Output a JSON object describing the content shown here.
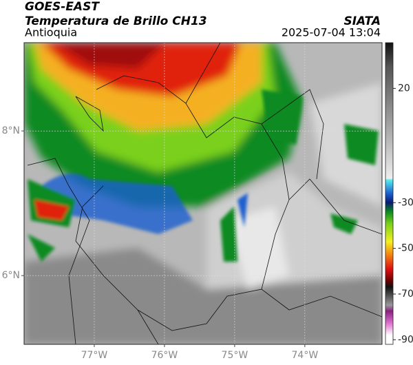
{
  "header": {
    "source": "GOES-EAST",
    "title": "Temperatura de Brillo CH13",
    "brand": "SIATA",
    "region": "Antioquia",
    "datetime": "2025-07-04 13:04"
  },
  "map": {
    "xlim": [
      -78,
      -72.9
    ],
    "ylim": [
      5.05,
      9.22
    ],
    "xticks": [
      {
        "value": -77,
        "label": "77°W"
      },
      {
        "value": -76,
        "label": "76°W"
      },
      {
        "value": -75,
        "label": "75°W"
      },
      {
        "value": -74,
        "label": "74°W"
      }
    ],
    "yticks": [
      {
        "value": 6,
        "label": "6°N"
      },
      {
        "value": 8,
        "label": "8°N"
      }
    ],
    "grid": true
  },
  "colorbar": {
    "lim": [
      -92,
      40
    ],
    "ticks": [
      20,
      -30,
      -50,
      -70,
      -90
    ]
  }
}
